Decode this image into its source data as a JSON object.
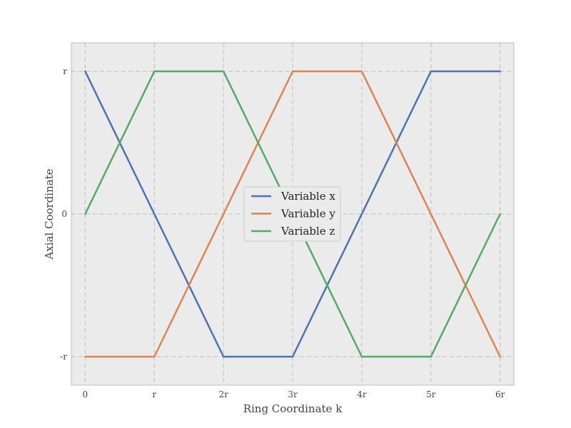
{
  "chart_data": {
    "type": "line",
    "title": "",
    "xlabel": "Ring Coordinate k",
    "ylabel": "Axial Coordinate",
    "xlim": [
      -0.2,
      6.2
    ],
    "ylim": [
      -1.2,
      1.2
    ],
    "x_ticks": [
      {
        "value": 0,
        "label": "0"
      },
      {
        "value": 1,
        "label": "r"
      },
      {
        "value": 2,
        "label": "2r"
      },
      {
        "value": 3,
        "label": "3r"
      },
      {
        "value": 4,
        "label": "4r"
      },
      {
        "value": 5,
        "label": "5r"
      },
      {
        "value": 6,
        "label": "6r"
      }
    ],
    "y_ticks": [
      {
        "value": -1,
        "label": "-r"
      },
      {
        "value": 0,
        "label": "0"
      },
      {
        "value": 1,
        "label": "r"
      }
    ],
    "grid": true,
    "legend_position": "center",
    "background": "#ebebeb",
    "series": [
      {
        "name": "Variable x",
        "color": "#4c72b0",
        "x": [
          0,
          1,
          2,
          3,
          4,
          5,
          6
        ],
        "y": [
          1,
          0,
          -1,
          -1,
          0,
          1,
          1
        ]
      },
      {
        "name": "Variable y",
        "color": "#dd8452",
        "x": [
          0,
          1,
          2,
          3,
          4,
          5,
          6
        ],
        "y": [
          -1,
          -1,
          0,
          1,
          1,
          0,
          -1
        ]
      },
      {
        "name": "Variable z",
        "color": "#55a868",
        "x": [
          0,
          1,
          2,
          3,
          4,
          5,
          6
        ],
        "y": [
          0,
          1,
          1,
          0,
          -1,
          -1,
          0
        ]
      }
    ]
  }
}
